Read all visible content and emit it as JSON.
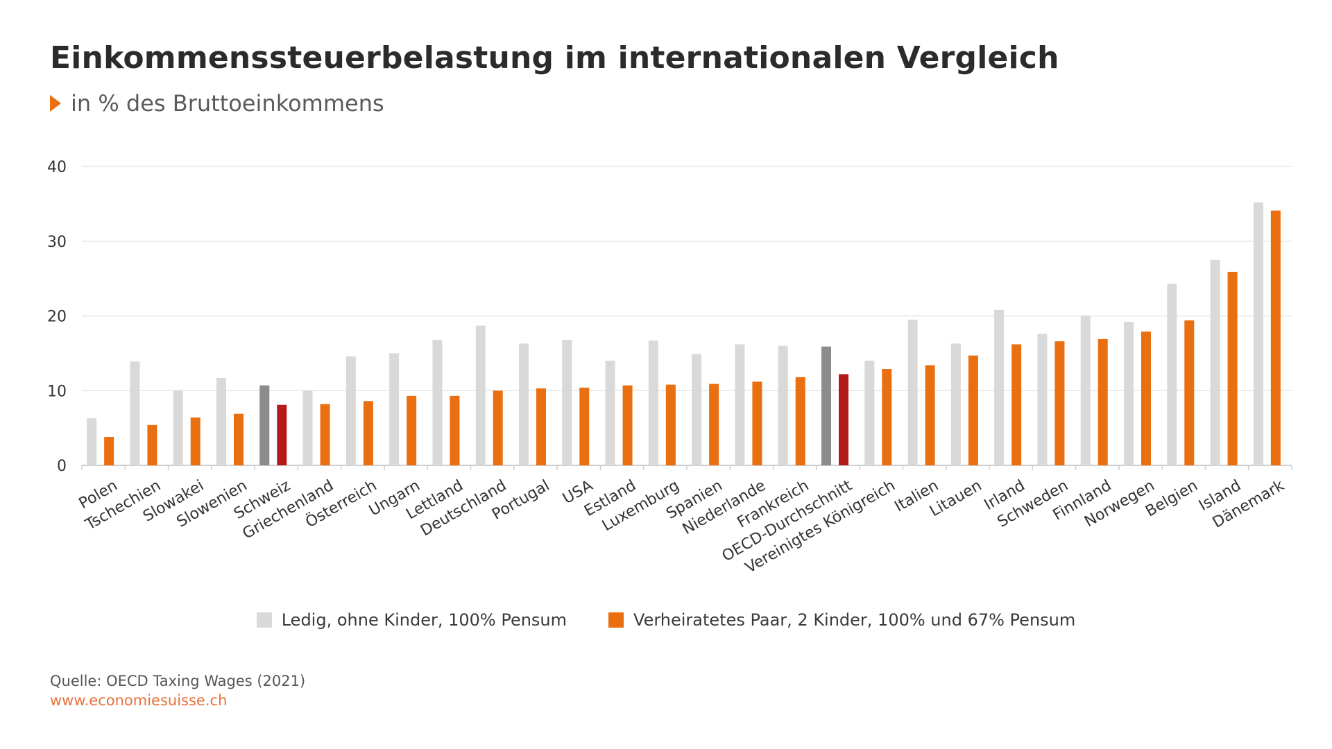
{
  "header": {
    "title": "Einkommenssteuerbelastung im internationalen Vergleich",
    "subtitle": "in % des Bruttoeinkommens"
  },
  "footer": {
    "source": "Quelle: OECD Taxing Wages (2021)",
    "url": "www.economiesuisse.ch"
  },
  "colors": {
    "single": "#d9d9d9",
    "married": "#ea6f11",
    "highlight_single": "#8c8c8c",
    "highlight_married": "#b31b1b",
    "grid": "#e6e6e6",
    "axis": "#cfcfcf",
    "accent": "#ea6f11"
  },
  "chart_data": {
    "type": "bar",
    "title": "Einkommenssteuerbelastung im internationalen Vergleich",
    "subtitle": "in % des Bruttoeinkommens",
    "ylim": [
      0,
      40
    ],
    "yticks": [
      0,
      10,
      20,
      30,
      40
    ],
    "grid": true,
    "legend_position": "bottom-center",
    "highlighted_categories": [
      "Schweiz",
      "OECD-Durchschnitt"
    ],
    "categories": [
      "Polen",
      "Tschechien",
      "Slowakei",
      "Slowenien",
      "Schweiz",
      "Griechenland",
      "Österreich",
      "Ungarn",
      "Lettland",
      "Deutschland",
      "Portugal",
      "USA",
      "Estland",
      "Luxemburg",
      "Spanien",
      "Niederlande",
      "Frankreich",
      "OECD-Durchschnitt",
      "Vereinigtes Königreich",
      "Italien",
      "Litauen",
      "Irland",
      "Schweden",
      "Finnland",
      "Norwegen",
      "Belgien",
      "Island",
      "Dänemark"
    ],
    "series": [
      {
        "name": "Ledig, ohne Kinder, 100% Pensum",
        "values": [
          6.3,
          13.9,
          10.0,
          11.7,
          10.7,
          10.0,
          14.6,
          15.0,
          16.8,
          18.7,
          16.3,
          16.8,
          14.0,
          16.7,
          14.9,
          16.2,
          16.0,
          15.9,
          14.0,
          19.5,
          16.3,
          20.8,
          17.6,
          20.0,
          19.2,
          24.3,
          27.5,
          35.2
        ]
      },
      {
        "name": "Verheiratetes Paar, 2 Kinder, 100% und 67% Pensum",
        "values": [
          3.8,
          5.4,
          6.4,
          6.9,
          8.1,
          8.2,
          8.6,
          9.3,
          9.3,
          10.0,
          10.3,
          10.4,
          10.7,
          10.8,
          10.9,
          11.2,
          11.8,
          12.2,
          12.9,
          13.4,
          14.7,
          16.2,
          16.6,
          16.9,
          17.9,
          19.4,
          25.9,
          34.1
        ]
      }
    ]
  }
}
